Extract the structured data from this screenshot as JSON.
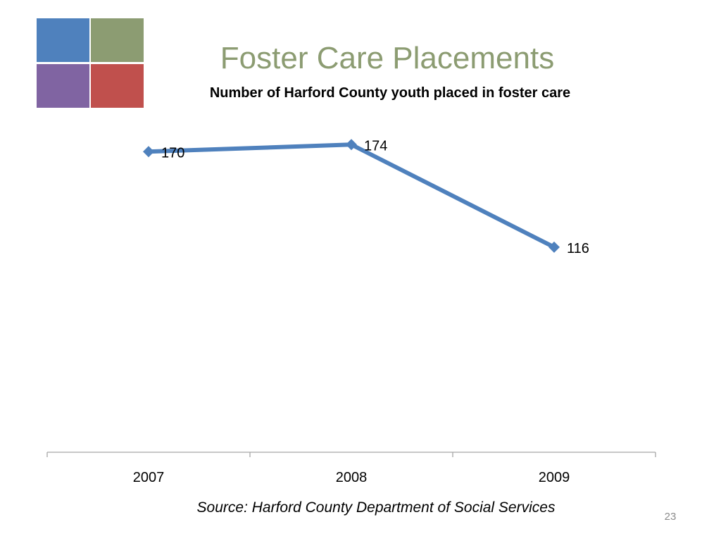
{
  "logo": {
    "colors": [
      "#4f81bd",
      "#8c9c72",
      "#8064a2",
      "#c0504d"
    ]
  },
  "slide": {
    "title": "Foster Care Placements",
    "title_color": "#8c9c72",
    "source": "Source: Harford County Department of Social Services",
    "page_number": "23"
  },
  "chart_data": {
    "type": "line",
    "title": "Number of Harford County youth placed in foster care",
    "categories": [
      "2007",
      "2008",
      "2009"
    ],
    "series": [
      {
        "values": [
          170,
          174,
          116
        ],
        "color": "#4f81bd"
      }
    ],
    "data_labels": [
      "170",
      "174",
      "116"
    ],
    "ylim": [
      0,
      200
    ],
    "grid": false,
    "legend": "none",
    "axis_color": "#a6a6a6"
  }
}
